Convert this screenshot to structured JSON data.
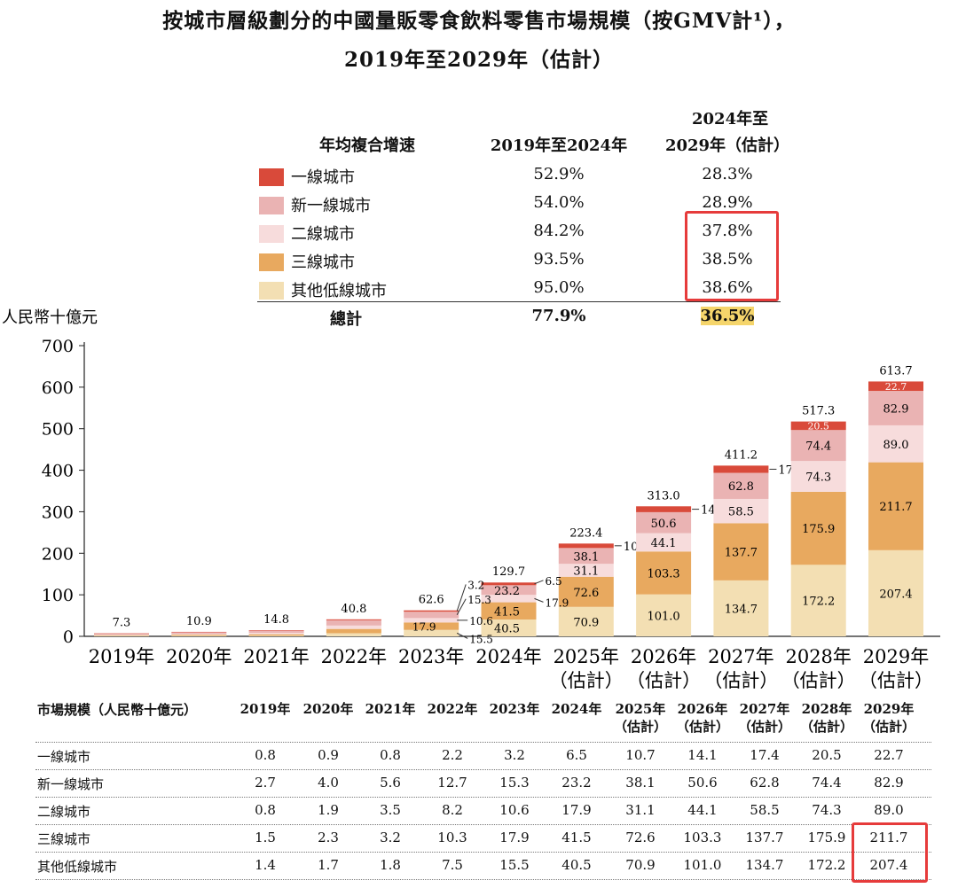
{
  "title_line1": "按城市層級劃分的中國量販零食飲料零售市場規模（按GMV計¹），",
  "title_line2": "2019年至2029年（估計）",
  "cagr_table": {
    "header_label": "年均複合增速",
    "header_col1": "2019年至2024年",
    "header_col2_line1": "2024年至",
    "header_col2_line2": "2029年（估計）",
    "rows": [
      {
        "name": "一線城市",
        "c1": "52.9%",
        "c2": "28.3%",
        "color": "#d94a3a"
      },
      {
        "name": "新一線城市",
        "c1": "54.0%",
        "c2": "28.9%",
        "color": "#eab3b3"
      },
      {
        "name": "二線城市",
        "c1": "84.2%",
        "c2": "37.8%",
        "color": "#f7dcdc"
      },
      {
        "name": "三線城市",
        "c1": "93.5%",
        "c2": "38.5%",
        "color": "#e8a95f"
      },
      {
        "name": "其他低線城市",
        "c1": "95.0%",
        "c2": "38.6%",
        "color": "#f3dfb3"
      }
    ],
    "total_label": "總計",
    "total_c1": "77.9%",
    "total_c2": "36.5%"
  },
  "chart_data": {
    "type": "bar",
    "stacked": true,
    "ylabel": "人民幣十億元",
    "ylim": [
      0,
      700
    ],
    "yticks": [
      0,
      100,
      200,
      300,
      400,
      500,
      600,
      700
    ],
    "categories": [
      [
        "2019年"
      ],
      [
        "2020年"
      ],
      [
        "2021年"
      ],
      [
        "2022年"
      ],
      [
        "2023年"
      ],
      [
        "2024年"
      ],
      [
        "2025年",
        "（估計）"
      ],
      [
        "2026年",
        "（估計）"
      ],
      [
        "2027年",
        "（估計）"
      ],
      [
        "2028年",
        "（估計）"
      ],
      [
        "2029年",
        "（估計）"
      ]
    ],
    "series": [
      {
        "name": "其他低線城市",
        "color": "#f3dfb3",
        "values": [
          1.4,
          1.7,
          1.8,
          7.5,
          15.5,
          40.5,
          70.9,
          101.0,
          134.7,
          172.2,
          207.4
        ]
      },
      {
        "name": "三線城市",
        "color": "#e8a95f",
        "values": [
          1.5,
          2.3,
          3.2,
          10.3,
          17.9,
          41.5,
          72.6,
          103.3,
          137.7,
          175.9,
          211.7
        ]
      },
      {
        "name": "二線城市",
        "color": "#f7dcdc",
        "values": [
          0.8,
          1.9,
          3.5,
          8.2,
          10.6,
          17.9,
          31.1,
          44.1,
          58.5,
          74.3,
          89.0
        ]
      },
      {
        "name": "新一線城市",
        "color": "#eab3b3",
        "values": [
          2.7,
          4.0,
          5.6,
          12.7,
          15.3,
          23.2,
          38.1,
          50.6,
          62.8,
          74.4,
          82.9
        ]
      },
      {
        "name": "一線城市",
        "color": "#d94a3a",
        "values": [
          0.8,
          0.9,
          0.8,
          2.2,
          3.2,
          6.5,
          10.7,
          14.1,
          17.4,
          20.5,
          22.7
        ]
      }
    ],
    "totals": [
      7.3,
      10.9,
      14.8,
      40.8,
      62.6,
      129.7,
      223.4,
      313.0,
      411.2,
      517.3,
      613.7
    ]
  },
  "data_table": {
    "header_label": "市場規模（人民幣十億元）",
    "columns": [
      [
        "2019年"
      ],
      [
        "2020年"
      ],
      [
        "2021年"
      ],
      [
        "2022年"
      ],
      [
        "2023年"
      ],
      [
        "2024年"
      ],
      [
        "2025年",
        "（估計）"
      ],
      [
        "2026年",
        "（估計）"
      ],
      [
        "2027年",
        "（估計）"
      ],
      [
        "2028年",
        "（估計）"
      ],
      [
        "2029年",
        "（估計）"
      ]
    ],
    "rows": [
      {
        "label": "一線城市",
        "values": [
          "0.8",
          "0.9",
          "0.8",
          "2.2",
          "3.2",
          "6.5",
          "10.7",
          "14.1",
          "17.4",
          "20.5",
          "22.7"
        ]
      },
      {
        "label": "新一線城市",
        "values": [
          "2.7",
          "4.0",
          "5.6",
          "12.7",
          "15.3",
          "23.2",
          "38.1",
          "50.6",
          "62.8",
          "74.4",
          "82.9"
        ]
      },
      {
        "label": "二線城市",
        "values": [
          "0.8",
          "1.9",
          "3.5",
          "8.2",
          "10.6",
          "17.9",
          "31.1",
          "44.1",
          "58.5",
          "74.3",
          "89.0"
        ]
      },
      {
        "label": "三線城市",
        "values": [
          "1.5",
          "2.3",
          "3.2",
          "10.3",
          "17.9",
          "41.5",
          "72.6",
          "103.3",
          "137.7",
          "175.9",
          "211.7"
        ]
      },
      {
        "label": "其他低線城市",
        "values": [
          "1.4",
          "1.7",
          "1.8",
          "7.5",
          "15.5",
          "40.5",
          "70.9",
          "101.0",
          "134.7",
          "172.2",
          "207.4"
        ]
      }
    ]
  },
  "highlight_color": "#e63b3b"
}
